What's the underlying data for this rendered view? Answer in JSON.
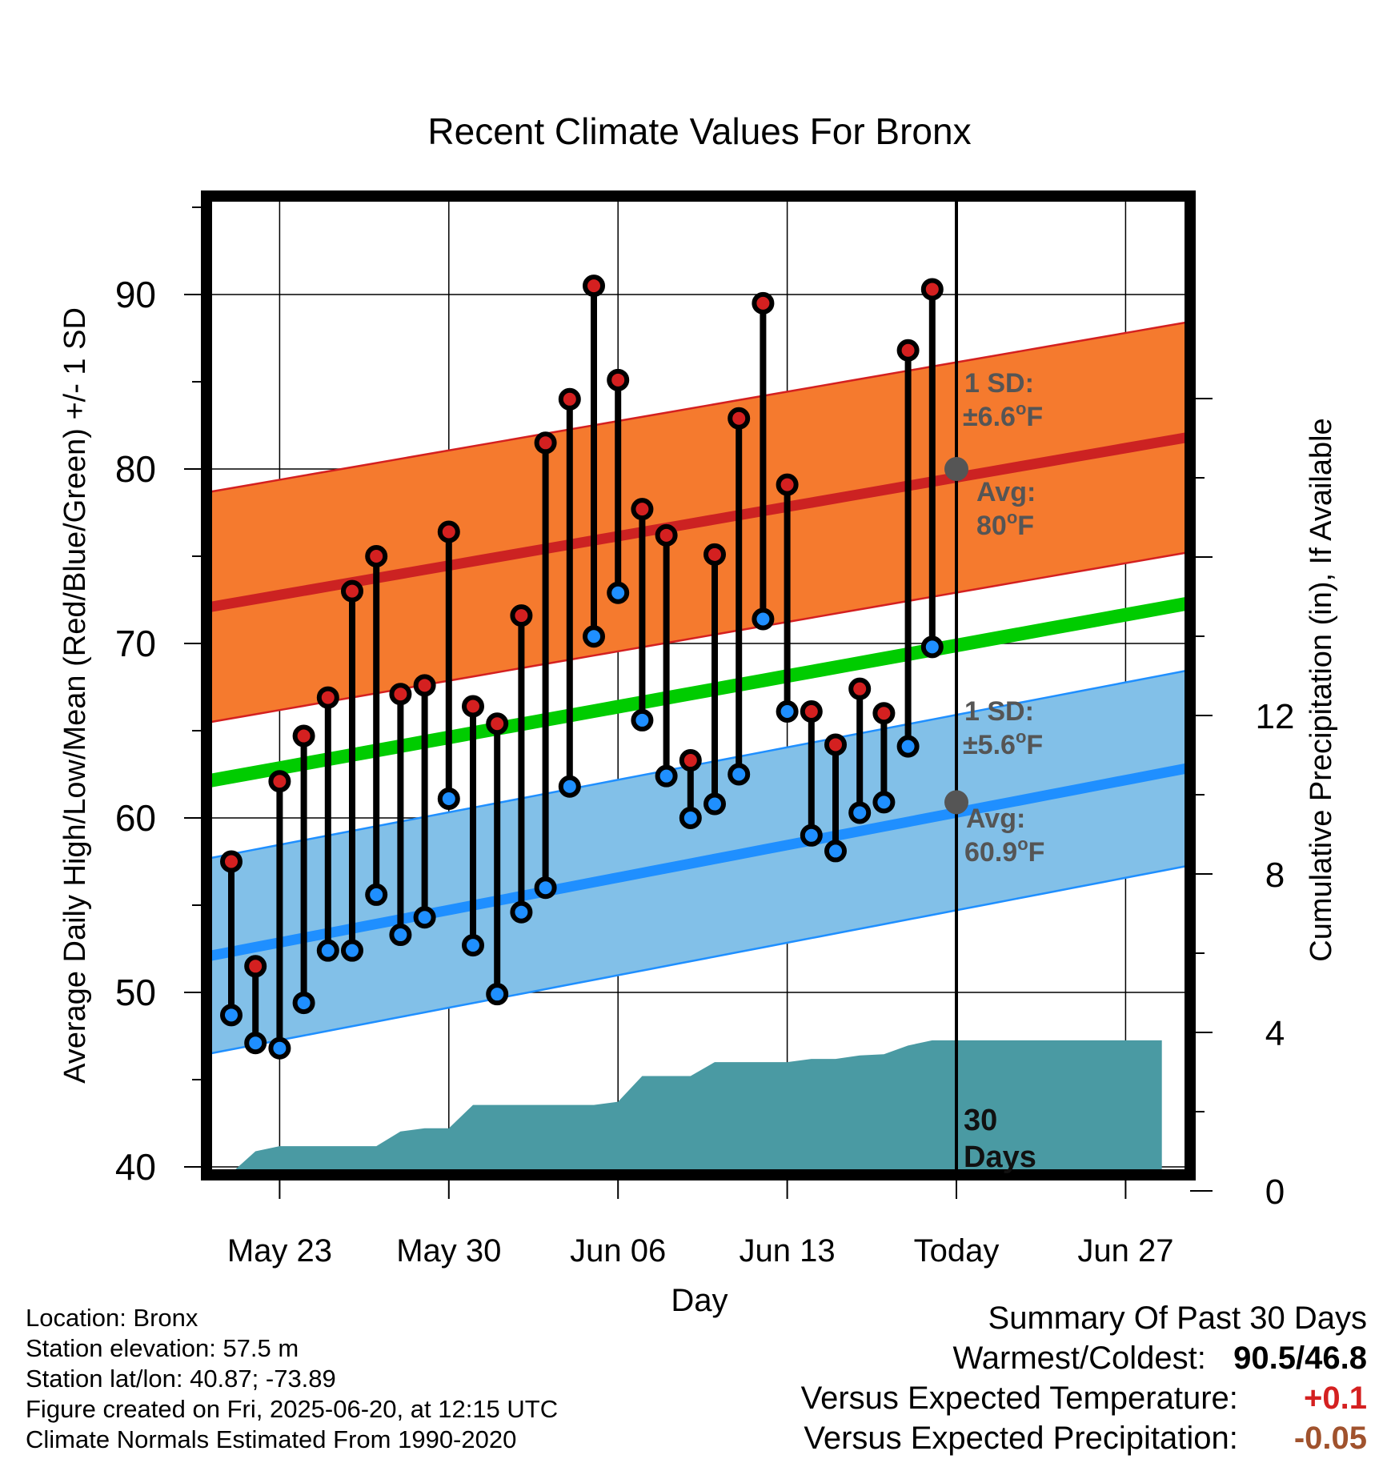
{
  "chart_data": {
    "type": "line",
    "title": "Recent Climate Values For Bronx",
    "xlabel": "Day",
    "ylabel": "Average Daily High/Low/Mean (Red/Blue/Green) +/- 1 SD",
    "y2label": "Cumulative Precipitation (in), If Available",
    "ylim": [
      39,
      95
    ],
    "y2lim": [
      0,
      20
    ],
    "xlim_days": [
      -34,
      13
    ],
    "x_ticks": [
      {
        "day": -27,
        "label": "May 23"
      },
      {
        "day": -20,
        "label": "May 30"
      },
      {
        "day": -13,
        "label": "Jun 06"
      },
      {
        "day": -6,
        "label": "Jun 13"
      },
      {
        "day": 1,
        "label": "Today"
      },
      {
        "day": 8,
        "label": "Jun 27"
      }
    ],
    "y_ticks": [
      40,
      50,
      60,
      70,
      80,
      90
    ],
    "y2_ticks": [
      0,
      4,
      8,
      12
    ],
    "today_day": 1,
    "today_label": "30 Days",
    "days": [
      -29,
      -28,
      -27,
      -26,
      -25,
      -24,
      -23,
      -22,
      -21,
      -20,
      -19,
      -18,
      -17,
      -16,
      -15,
      -14,
      -13,
      -12,
      -11,
      -10,
      -9,
      -8,
      -7,
      -6,
      -5,
      -4,
      -3,
      -2,
      -1,
      0
    ],
    "highs": [
      57.5,
      51.5,
      62.1,
      64.7,
      66.9,
      73.0,
      75.0,
      67.1,
      67.6,
      76.4,
      66.4,
      65.4,
      71.6,
      81.5,
      84.0,
      90.5,
      85.1,
      77.7,
      76.2,
      63.3,
      75.1,
      82.9,
      89.5,
      79.1,
      66.1,
      64.2,
      67.4,
      66.0,
      86.8,
      90.3
    ],
    "lows": [
      48.7,
      47.1,
      46.8,
      49.4,
      52.4,
      52.4,
      55.6,
      53.3,
      54.3,
      61.1,
      52.7,
      49.9,
      54.6,
      56.0,
      61.8,
      70.4,
      72.9,
      65.6,
      62.4,
      60.0,
      60.8,
      62.5,
      71.4,
      66.1,
      59.0,
      58.1,
      60.3,
      60.9,
      64.1,
      69.8
    ],
    "series": [
      {
        "name": "Avg High",
        "color": "#cc2222",
        "start": 71.1,
        "end": 82.4,
        "sd": 6.6
      },
      {
        "name": "Avg Low",
        "color": "#1f8fff",
        "start": 51.0,
        "end": 63.5,
        "sd": 5.6
      },
      {
        "name": "Mean",
        "color": "#00cc00",
        "start": 61.1,
        "end": 72.9
      }
    ],
    "band_colors": {
      "high": "#f57a2e",
      "high_edge": "#d42020",
      "low": "#82c0e8",
      "low_edge": "#1f8fff"
    },
    "precip_color": "#4a9aa3",
    "precip": [
      {
        "day": -31,
        "value": 0.0
      },
      {
        "day": -30,
        "value": 0.0
      },
      {
        "day": -29,
        "value": 0.45
      },
      {
        "day": -28,
        "value": 1.0
      },
      {
        "day": -27,
        "value": 1.13
      },
      {
        "day": -23,
        "value": 1.13
      },
      {
        "day": -22,
        "value": 1.5
      },
      {
        "day": -21,
        "value": 1.58
      },
      {
        "day": -20,
        "value": 1.58
      },
      {
        "day": -19,
        "value": 2.17
      },
      {
        "day": -14,
        "value": 2.17
      },
      {
        "day": -13,
        "value": 2.25
      },
      {
        "day": -12,
        "value": 2.9
      },
      {
        "day": -11,
        "value": 2.9
      },
      {
        "day": -10,
        "value": 2.9
      },
      {
        "day": -9,
        "value": 3.25
      },
      {
        "day": -6,
        "value": 3.25
      },
      {
        "day": -5,
        "value": 3.33
      },
      {
        "day": -4,
        "value": 3.33
      },
      {
        "day": -3,
        "value": 3.42
      },
      {
        "day": -2,
        "value": 3.45
      },
      {
        "day": -1,
        "value": 3.67
      },
      {
        "day": 0,
        "value": 3.8
      },
      {
        "day": 9.5,
        "value": 3.8
      }
    ],
    "annotations": {
      "high_sd_line1": "1 SD:",
      "high_sd_line2": "±6.6",
      "high_sd_sup": "o",
      "high_sd_unit": "F",
      "high_avg_line1": "Avg:",
      "high_avg_value": "80",
      "high_avg_sup": "o",
      "high_avg_unit": "F",
      "low_sd_line1": "1 SD:",
      "low_sd_line2": "±5.6",
      "low_sd_sup": "o",
      "low_sd_unit": "F",
      "low_avg_line1": "Avg:",
      "low_avg_value": "60.9",
      "low_avg_sup": "o",
      "low_avg_unit": "F",
      "today_high_avg": 80,
      "today_low_avg": 60.9
    }
  },
  "info": {
    "location": "Location: Bronx",
    "elevation": "Station elevation: 57.5 m",
    "latlon": "Station lat/lon: 40.87; -73.89",
    "created": "Figure created on Fri, 2025-06-20, at 12:15 UTC",
    "normals": "Climate Normals Estimated From 1990-2020"
  },
  "summary": {
    "heading": "Summary Of Past 30 Days",
    "warm_cold_label": "Warmest/Coldest:",
    "warm_cold_value": "90.5/46.8",
    "temp_label": "Versus Expected Temperature:",
    "temp_value": "+0.1",
    "temp_color": "#d42020",
    "precip_label": "Versus Expected Precipitation:",
    "precip_value": "-0.05",
    "precip_value_color": "#a0522d"
  }
}
